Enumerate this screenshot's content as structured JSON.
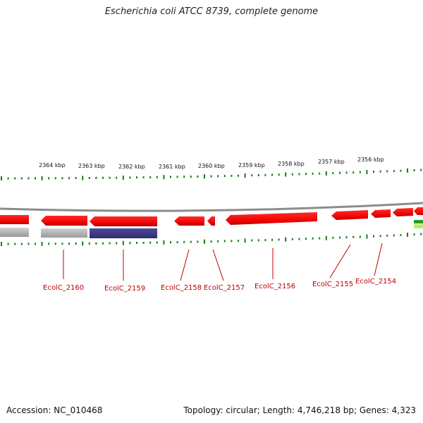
{
  "title": "Escherichia coli ATCC 8739, complete genome",
  "footer": {
    "accession": "Accession: NC_010468",
    "summary": "Topology: circular; Length: 4,746,218 bp; Genes: 4,323"
  },
  "ruler": {
    "labels": [
      "2364 kbp",
      "2363 kbp",
      "2362 kbp",
      "2361 kbp",
      "2360 kbp",
      "2359 kbp",
      "2358 kbp",
      "2357 kbp",
      "2356 kbp"
    ]
  },
  "genes": [
    "EcolC_2160",
    "EcolC_2159",
    "EcolC_2158",
    "EcolC_2157",
    "EcolC_2156",
    "EcolC_2155",
    "EcolC_2154"
  ],
  "colors": {
    "cds": "#ff0000",
    "cds_dark": "#c80000",
    "tick": "#1a7a1a",
    "label": "#c00000",
    "backbone": "#8a8a8a",
    "gray_feature": "#b0b0b0",
    "blue_feature": "#3f3f8f"
  }
}
